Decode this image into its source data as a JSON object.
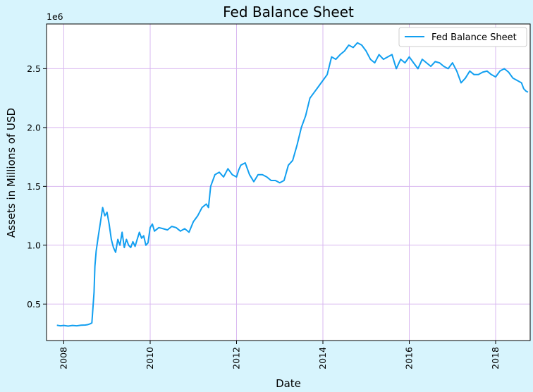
{
  "chart_data": {
    "type": "line",
    "title": "Fed Balance Sheet",
    "xlabel": "Date",
    "ylabel": "Assets in Millions of USD",
    "offset_label": "1e6",
    "x_unit": "year",
    "xlim": [
      2007.6,
      2018.8
    ],
    "ylim": [
      190000,
      2880000
    ],
    "x_ticks": [
      2008,
      2010,
      2012,
      2014,
      2016,
      2018
    ],
    "x_tick_labels": [
      "2008",
      "2010",
      "2012",
      "2014",
      "2016",
      "2018"
    ],
    "y_ticks": [
      500000,
      1000000,
      1500000,
      2000000,
      2500000
    ],
    "y_tick_labels": [
      "0.5",
      "1.0",
      "1.5",
      "2.0",
      "2.5"
    ],
    "grid": true,
    "grid_color": "#d9b8f0",
    "line_color": "#129ff0",
    "figure_bg": "#d7f4fd",
    "axes_bg": "#ffffff",
    "legend_position": "top-right",
    "series": [
      {
        "name": "Fed Balance Sheet",
        "x": [
          2007.84,
          2007.92,
          2008.0,
          2008.1,
          2008.2,
          2008.3,
          2008.4,
          2008.5,
          2008.55,
          2008.6,
          2008.65,
          2008.7,
          2008.72,
          2008.75,
          2008.8,
          2008.85,
          2008.9,
          2008.95,
          2009.0,
          2009.05,
          2009.1,
          2009.15,
          2009.2,
          2009.25,
          2009.3,
          2009.35,
          2009.4,
          2009.45,
          2009.5,
          2009.55,
          2009.6,
          2009.65,
          2009.7,
          2009.75,
          2009.8,
          2009.85,
          2009.9,
          2009.95,
          2010.0,
          2010.05,
          2010.1,
          2010.2,
          2010.3,
          2010.4,
          2010.5,
          2010.6,
          2010.7,
          2010.8,
          2010.9,
          2011.0,
          2011.1,
          2011.2,
          2011.3,
          2011.35,
          2011.4,
          2011.5,
          2011.6,
          2011.7,
          2011.8,
          2011.9,
          2012.0,
          2012.05,
          2012.1,
          2012.2,
          2012.3,
          2012.4,
          2012.5,
          2012.6,
          2012.7,
          2012.8,
          2012.9,
          2013.0,
          2013.1,
          2013.2,
          2013.3,
          2013.4,
          2013.5,
          2013.6,
          2013.7,
          2013.8,
          2013.9,
          2014.0,
          2014.1,
          2014.2,
          2014.3,
          2014.4,
          2014.5,
          2014.6,
          2014.7,
          2014.8,
          2014.9,
          2015.0,
          2015.1,
          2015.2,
          2015.3,
          2015.4,
          2015.5,
          2015.6,
          2015.7,
          2015.8,
          2015.9,
          2016.0,
          2016.1,
          2016.2,
          2016.3,
          2016.4,
          2016.5,
          2016.6,
          2016.7,
          2016.8,
          2016.9,
          2017.0,
          2017.1,
          2017.2,
          2017.3,
          2017.4,
          2017.5,
          2017.6,
          2017.7,
          2017.8,
          2017.9,
          2018.0,
          2018.1,
          2018.2,
          2018.3,
          2018.4,
          2018.5,
          2018.6,
          2018.65,
          2018.7,
          2018.75
        ],
        "y": [
          320000,
          315000,
          318000,
          313000,
          318000,
          315000,
          320000,
          322000,
          325000,
          330000,
          340000,
          600000,
          820000,
          950000,
          1080000,
          1200000,
          1320000,
          1250000,
          1280000,
          1180000,
          1050000,
          980000,
          940000,
          1050000,
          1000000,
          1110000,
          980000,
          1050000,
          1000000,
          980000,
          1030000,
          990000,
          1050000,
          1110000,
          1060000,
          1080000,
          1000000,
          1020000,
          1150000,
          1180000,
          1120000,
          1150000,
          1140000,
          1130000,
          1160000,
          1150000,
          1120000,
          1140000,
          1110000,
          1200000,
          1250000,
          1320000,
          1350000,
          1320000,
          1500000,
          1600000,
          1620000,
          1580000,
          1650000,
          1600000,
          1580000,
          1640000,
          1680000,
          1700000,
          1600000,
          1540000,
          1600000,
          1600000,
          1580000,
          1550000,
          1550000,
          1530000,
          1550000,
          1680000,
          1720000,
          1850000,
          2000000,
          2100000,
          2250000,
          2300000,
          2350000,
          2400000,
          2450000,
          2600000,
          2580000,
          2620000,
          2650000,
          2700000,
          2680000,
          2720000,
          2700000,
          2650000,
          2580000,
          2550000,
          2620000,
          2580000,
          2600000,
          2620000,
          2500000,
          2580000,
          2550000,
          2600000,
          2550000,
          2500000,
          2580000,
          2550000,
          2520000,
          2560000,
          2550000,
          2520000,
          2500000,
          2550000,
          2480000,
          2380000,
          2420000,
          2480000,
          2450000,
          2450000,
          2470000,
          2480000,
          2450000,
          2430000,
          2480000,
          2500000,
          2470000,
          2420000,
          2400000,
          2380000,
          2330000,
          2310000,
          2300000
        ]
      }
    ]
  }
}
